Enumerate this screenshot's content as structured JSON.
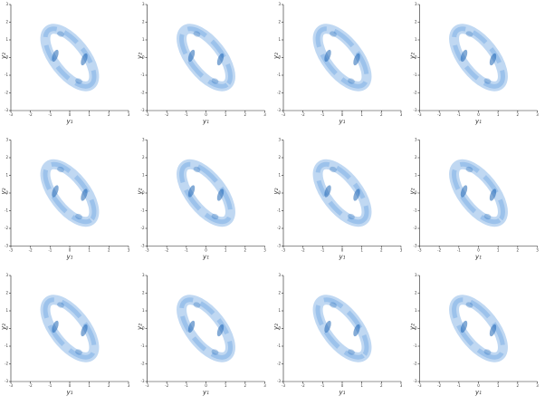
{
  "chart_data": [
    {
      "type": "kde",
      "xlabel": "y₁",
      "ylabel": "y₂",
      "xlim": [
        -3,
        3
      ],
      "ylim": [
        -3,
        3
      ],
      "xticks": [
        -3,
        -2,
        -1,
        0,
        1,
        2,
        3
      ],
      "yticks": [
        -3,
        -2,
        -1,
        0,
        1,
        2,
        3
      ],
      "color": "#4a90d9"
    },
    {
      "type": "kde",
      "xlabel": "y₁",
      "ylabel": "y₂",
      "xlim": [
        -3,
        3
      ],
      "ylim": [
        -3,
        3
      ],
      "xticks": [
        -3,
        -2,
        -1,
        0,
        1,
        2,
        3
      ],
      "yticks": [
        -3,
        -2,
        -1,
        0,
        1,
        2,
        3
      ],
      "color": "#4a90d9"
    },
    {
      "type": "kde",
      "xlabel": "y₁",
      "ylabel": "y₂",
      "xlim": [
        -3,
        3
      ],
      "ylim": [
        -3,
        3
      ],
      "xticks": [
        -3,
        -2,
        -1,
        0,
        1,
        2,
        3
      ],
      "yticks": [
        -3,
        -2,
        -1,
        0,
        1,
        2,
        3
      ],
      "color": "#4a90d9"
    },
    {
      "type": "kde",
      "xlabel": "y₁",
      "ylabel": "y₂",
      "xlim": [
        -3,
        3
      ],
      "ylim": [
        -3,
        3
      ],
      "xticks": [
        -3,
        -2,
        -1,
        0,
        1,
        2,
        3
      ],
      "yticks": [
        -3,
        -2,
        -1,
        0,
        1,
        2,
        3
      ],
      "color": "#4a90d9"
    },
    {
      "type": "kde",
      "xlabel": "y₁",
      "ylabel": "y₂",
      "xlim": [
        -3,
        3
      ],
      "ylim": [
        -3,
        3
      ],
      "xticks": [
        -3,
        -2,
        -1,
        0,
        1,
        2,
        3
      ],
      "yticks": [
        -3,
        -2,
        -1,
        0,
        1,
        2,
        3
      ],
      "color": "#4a90d9"
    },
    {
      "type": "kde",
      "xlabel": "y₁",
      "ylabel": "y₂",
      "xlim": [
        -3,
        3
      ],
      "ylim": [
        -3,
        3
      ],
      "xticks": [
        -3,
        -2,
        -1,
        0,
        1,
        2,
        3
      ],
      "yticks": [
        -3,
        -2,
        -1,
        0,
        1,
        2,
        3
      ],
      "color": "#4a90d9"
    },
    {
      "type": "kde",
      "xlabel": "y₁",
      "ylabel": "y₂",
      "xlim": [
        -3,
        3
      ],
      "ylim": [
        -3,
        3
      ],
      "xticks": [
        -3,
        -2,
        -1,
        0,
        1,
        2,
        3
      ],
      "yticks": [
        -3,
        -2,
        -1,
        0,
        1,
        2,
        3
      ],
      "color": "#4a90d9"
    },
    {
      "type": "kde",
      "xlabel": "y₁",
      "ylabel": "y₂",
      "xlim": [
        -3,
        3
      ],
      "ylim": [
        -3,
        3
      ],
      "xticks": [
        -3,
        -2,
        -1,
        0,
        1,
        2,
        3
      ],
      "yticks": [
        -3,
        -2,
        -1,
        0,
        1,
        2,
        3
      ],
      "color": "#4a90d9"
    },
    {
      "type": "kde",
      "xlabel": "y₁",
      "ylabel": "y₂",
      "xlim": [
        -3,
        3
      ],
      "ylim": [
        -3,
        3
      ],
      "xticks": [
        -3,
        -2,
        -1,
        0,
        1,
        2,
        3
      ],
      "yticks": [
        -3,
        -2,
        -1,
        0,
        1,
        2,
        3
      ],
      "color": "#4a90d9"
    },
    {
      "type": "kde",
      "xlabel": "y₁",
      "ylabel": "y₂",
      "xlim": [
        -3,
        3
      ],
      "ylim": [
        -3,
        3
      ],
      "xticks": [
        -3,
        -2,
        -1,
        0,
        1,
        2,
        3
      ],
      "yticks": [
        -3,
        -2,
        -1,
        0,
        1,
        2,
        3
      ],
      "color": "#4a90d9"
    },
    {
      "type": "kde",
      "xlabel": "y₁",
      "ylabel": "y₂",
      "xlim": [
        -3,
        3
      ],
      "ylim": [
        -3,
        3
      ],
      "xticks": [
        -3,
        -2,
        -1,
        0,
        1,
        2,
        3
      ],
      "yticks": [
        -3,
        -2,
        -1,
        0,
        1,
        2,
        3
      ],
      "color": "#4a90d9"
    },
    {
      "type": "kde",
      "xlabel": "y₁",
      "ylabel": "y₂",
      "xlim": [
        -3,
        3
      ],
      "ylim": [
        -3,
        3
      ],
      "xticks": [
        -3,
        -2,
        -1,
        0,
        1,
        2,
        3
      ],
      "yticks": [
        -3,
        -2,
        -1,
        0,
        1,
        2,
        3
      ],
      "color": "#4a90d9"
    }
  ]
}
